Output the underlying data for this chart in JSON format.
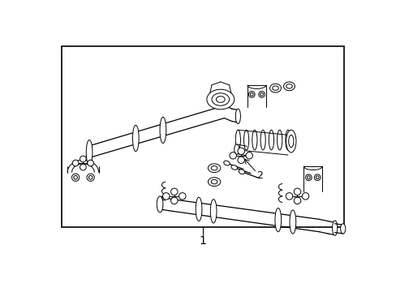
{
  "background_color": "#ffffff",
  "border_color": "#000000",
  "line_color": "#000000",
  "label_1": "1",
  "label_2": "2",
  "fig_width": 4.89,
  "fig_height": 3.6,
  "dpi": 100
}
